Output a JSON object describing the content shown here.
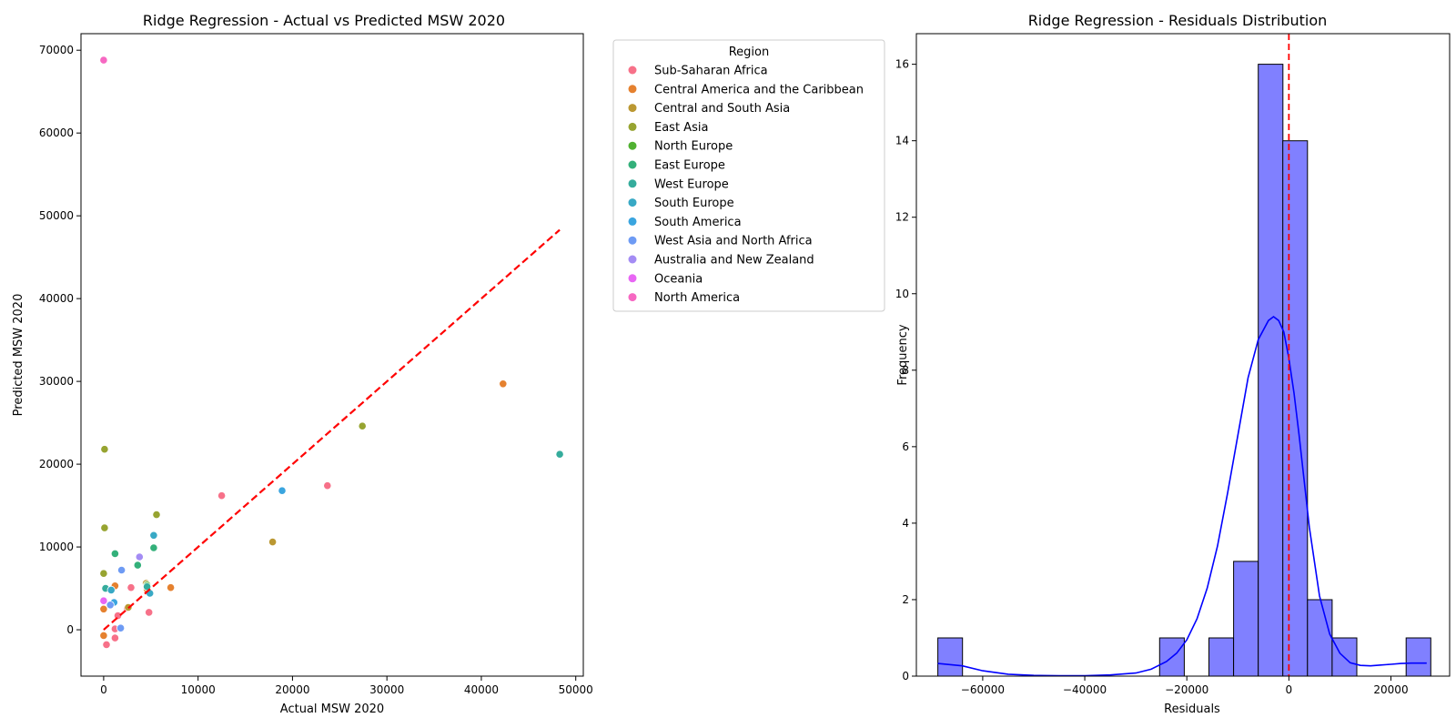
{
  "chart_data": [
    {
      "type": "scatter",
      "title": "Ridge Regression - Actual vs Predicted MSW 2020",
      "xlabel": "Actual MSW 2020",
      "ylabel": "Predicted MSW 2020",
      "xlim": [
        -2400,
        50800
      ],
      "ylim": [
        -5600,
        72000
      ],
      "xticks": [
        0,
        10000,
        20000,
        30000,
        40000,
        50000
      ],
      "yticks": [
        0,
        10000,
        20000,
        30000,
        40000,
        50000,
        60000,
        70000
      ],
      "legend_title": "Region",
      "legend_position": "outside-right",
      "grid": false,
      "series": [
        {
          "name": "Sub-Saharan Africa",
          "color": "#f77189",
          "points": [
            [
              12500,
              16200
            ],
            [
              23700,
              17400
            ],
            [
              2900,
              5100
            ],
            [
              4800,
              2100
            ],
            [
              1200,
              100
            ],
            [
              1200,
              -1000
            ],
            [
              300,
              -1800
            ],
            [
              1500,
              1700
            ],
            [
              2500,
              2600
            ]
          ]
        },
        {
          "name": "Central America and the Caribbean",
          "color": "#e5812f",
          "points": [
            [
              42300,
              29700
            ],
            [
              7100,
              5100
            ],
            [
              4600,
              4900
            ],
            [
              1200,
              5300
            ],
            [
              0,
              2500
            ],
            [
              0,
              -700
            ]
          ]
        },
        {
          "name": "Central and South Asia",
          "color": "#bb9832",
          "points": [
            [
              17900,
              10600
            ],
            [
              2600,
              2700
            ],
            [
              4500,
              5600
            ]
          ]
        },
        {
          "name": "East Asia",
          "color": "#97a431",
          "points": [
            [
              27400,
              24600
            ],
            [
              100,
              21800
            ],
            [
              100,
              12300
            ],
            [
              0,
              6800
            ],
            [
              5600,
              13900
            ]
          ]
        },
        {
          "name": "North Europe",
          "color": "#50b131",
          "points": [
            [
              4600,
              5400
            ]
          ]
        },
        {
          "name": "East Europe",
          "color": "#33b07a",
          "points": [
            [
              1200,
              9200
            ],
            [
              3600,
              7800
            ],
            [
              5300,
              9900
            ]
          ]
        },
        {
          "name": "West Europe",
          "color": "#35ac9c",
          "points": [
            [
              48300,
              21200
            ],
            [
              200,
              5000
            ],
            [
              4600,
              5200
            ]
          ]
        },
        {
          "name": "South Europe",
          "color": "#38a9c5",
          "points": [
            [
              5300,
              11400
            ],
            [
              800,
              4800
            ],
            [
              4900,
              4400
            ]
          ]
        },
        {
          "name": "South America",
          "color": "#3aa5df",
          "points": [
            [
              18900,
              16800
            ],
            [
              1100,
              3300
            ]
          ]
        },
        {
          "name": "West Asia and North Africa",
          "color": "#6e9bf4",
          "points": [
            [
              1900,
              7200
            ],
            [
              1800,
              200
            ],
            [
              700,
              3000
            ]
          ]
        },
        {
          "name": "Australia and New Zealand",
          "color": "#a48cf4",
          "points": [
            [
              3800,
              8800
            ]
          ]
        },
        {
          "name": "Oceania",
          "color": "#e866f4",
          "points": [
            [
              0,
              3500
            ]
          ]
        },
        {
          "name": "North America",
          "color": "#f668c2",
          "points": [
            [
              0,
              68800
            ]
          ]
        }
      ],
      "reference_line": {
        "style": "dashed",
        "color": "#ff0000",
        "from": [
          0,
          0
        ],
        "to": [
          48300,
          48300
        ]
      }
    },
    {
      "type": "histogram",
      "title": "Ridge Regression - Residuals Distribution",
      "xlabel": "Residuals",
      "ylabel": "Frequency",
      "xlim": [
        -73000,
        31500
      ],
      "ylim": [
        0,
        16.8
      ],
      "xticks": [
        -60000,
        -40000,
        -20000,
        0,
        20000
      ],
      "xtick_labels": [
        "−60000",
        "−40000",
        "−20000",
        "0",
        "20000"
      ],
      "yticks": [
        0,
        2,
        4,
        6,
        8,
        10,
        12,
        14,
        16
      ],
      "bar_color": "#8080ff",
      "bar_edge": "#000000",
      "bin_edges": [
        -68800,
        -63970,
        -59140,
        -54310,
        -49480,
        -44650,
        -39820,
        -34990,
        -30160,
        -25330,
        -20500,
        -15670,
        -10840,
        -6010,
        -1180,
        3650,
        8480,
        13310,
        18140,
        22970,
        27800
      ],
      "counts": [
        1,
        0,
        0,
        0,
        0,
        0,
        0,
        0,
        0,
        1,
        0,
        1,
        3,
        16,
        14,
        2,
        1,
        0,
        0,
        1
      ],
      "kde": {
        "color": "#0000ff",
        "x": [
          -68800,
          -64000,
          -60000,
          -55000,
          -50000,
          -45000,
          -40000,
          -35000,
          -30000,
          -27000,
          -24000,
          -22000,
          -20000,
          -18000,
          -16000,
          -14000,
          -12000,
          -10000,
          -8000,
          -6000,
          -4000,
          -3000,
          -2000,
          -1000,
          0,
          1000,
          2000,
          3000,
          4000,
          6000,
          8000,
          10000,
          12000,
          14000,
          16000,
          18000,
          20000,
          22000,
          24000,
          27000
        ],
        "y": [
          0.33,
          0.27,
          0.14,
          0.05,
          0.02,
          0.01,
          0.01,
          0.03,
          0.08,
          0.18,
          0.38,
          0.6,
          0.95,
          1.5,
          2.3,
          3.4,
          4.8,
          6.3,
          7.8,
          8.8,
          9.3,
          9.4,
          9.3,
          9.0,
          8.3,
          7.4,
          6.3,
          5.1,
          3.9,
          2.1,
          1.1,
          0.6,
          0.35,
          0.28,
          0.27,
          0.29,
          0.31,
          0.33,
          0.34,
          0.34
        ]
      },
      "reference_line": {
        "style": "dashed",
        "color": "#ff0000",
        "x": 0
      }
    }
  ]
}
